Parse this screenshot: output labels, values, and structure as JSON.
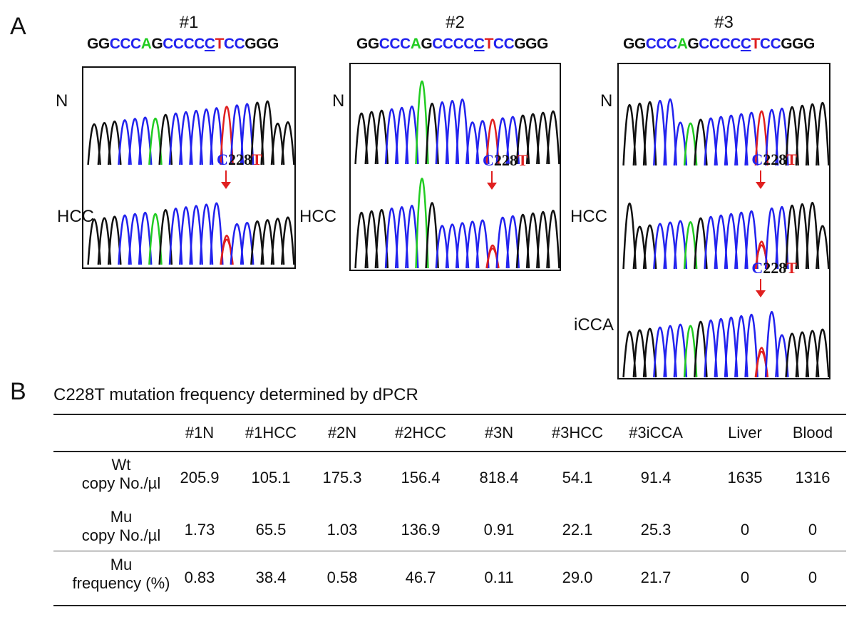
{
  "panel_a": {
    "label": "A",
    "samples": [
      {
        "id": "#1",
        "sequence": "GGCCCAGCCCCCTCCGGG",
        "rows": [
          "N",
          "HCC"
        ],
        "mutation": {
          "wt": "C",
          "pos": "228",
          "mu": "T"
        }
      },
      {
        "id": "#2",
        "sequence": "GGCCCAGCCCCCTCCGGG",
        "rows": [
          "N",
          "HCC"
        ],
        "mutation": {
          "wt": "C",
          "pos": "228",
          "mu": "T"
        }
      },
      {
        "id": "#3",
        "sequence": "GGCCCAGCCCCCTCCGGG",
        "rows": [
          "N",
          "HCC",
          "iCCA"
        ],
        "mutation": {
          "wt": "C",
          "pos": "228",
          "mu": "T"
        }
      }
    ],
    "base_colors": {
      "G": "#111111",
      "C": "#2222ee",
      "A": "#22cc22",
      "T": "#e02020"
    }
  },
  "panel_b": {
    "label": "B",
    "title": "C228T mutation frequency determined by dPCR",
    "columns": [
      "#1N",
      "#1HCC",
      "#2N",
      "#2HCC",
      "#3N",
      "#3HCC",
      "#3iCCA",
      "Liver",
      "Blood"
    ],
    "rows": [
      {
        "label": [
          "Wt",
          "copy No./µl"
        ],
        "values": [
          "205.9",
          "105.1",
          "175.3",
          "156.4",
          "818.4",
          "54.1",
          "91.4",
          "1635",
          "1316"
        ]
      },
      {
        "label": [
          "Mu",
          "copy No./µl"
        ],
        "values": [
          "1.73",
          "65.5",
          "1.03",
          "136.9",
          "0.91",
          "22.1",
          "25.3",
          "0",
          "0"
        ]
      },
      {
        "label": [
          "Mu",
          "frequency (%)"
        ],
        "values": [
          "0.83",
          "38.4",
          "0.58",
          "46.7",
          "0.11",
          "29.0",
          "21.7",
          "0",
          "0"
        ]
      }
    ]
  }
}
